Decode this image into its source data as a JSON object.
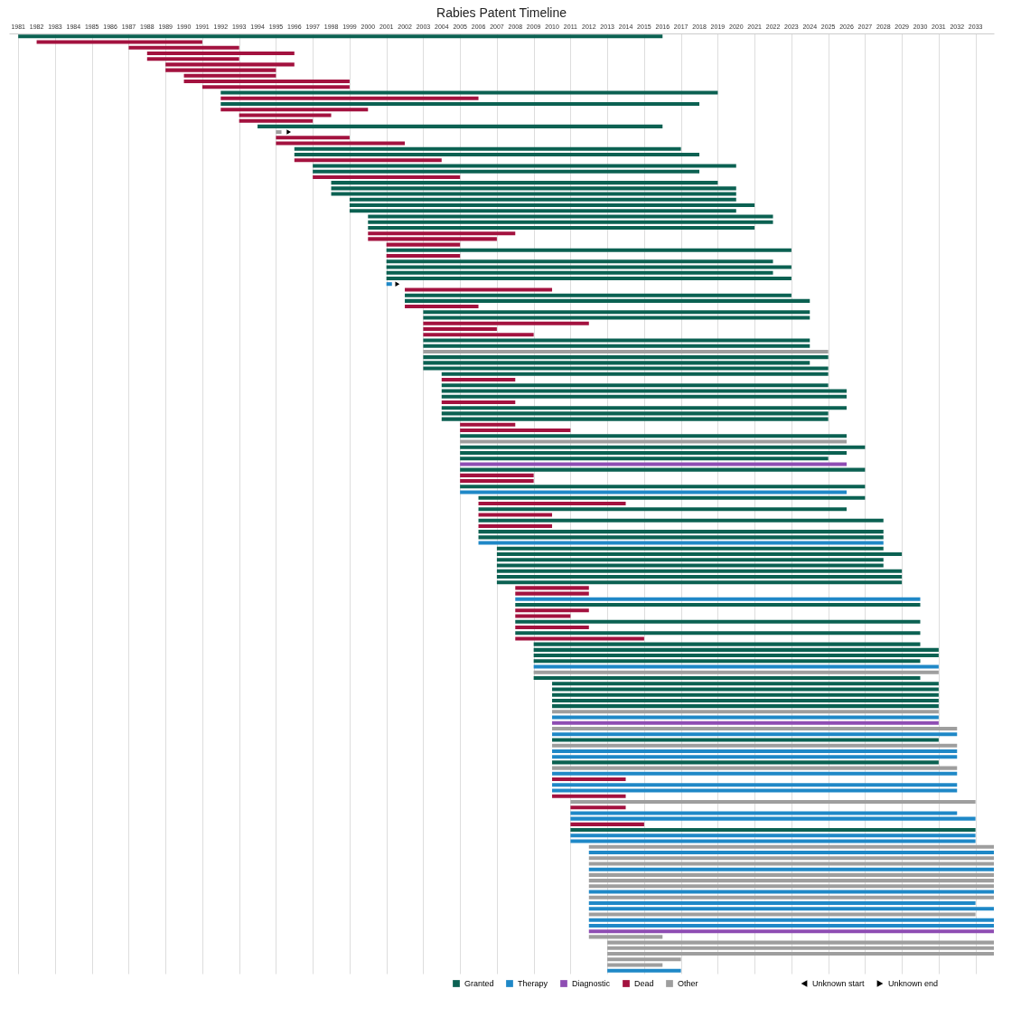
{
  "chart_data": {
    "type": "bar",
    "orientation": "horizontal",
    "title": "Rabies Patent Timeline",
    "categories": [
      null,
      null,
      null,
      null,
      null,
      null,
      null,
      null,
      null,
      null,
      null,
      null,
      null,
      null,
      null,
      null,
      null,
      null,
      null,
      null,
      null,
      null,
      null,
      null,
      null,
      null,
      null,
      null,
      null,
      null,
      null,
      null,
      null,
      null,
      null,
      null,
      null,
      null,
      null,
      null,
      null,
      null,
      null,
      null,
      null,
      null,
      null,
      null,
      null,
      null,
      null,
      null,
      null,
      null,
      null,
      null,
      null,
      null,
      null,
      null,
      null,
      null,
      null,
      null,
      null,
      null,
      null,
      null,
      null,
      null,
      null,
      null,
      null,
      null,
      null,
      null,
      null,
      null,
      null,
      null,
      null,
      null,
      null,
      null,
      null,
      null,
      null,
      null,
      null,
      null,
      null,
      null,
      null,
      null,
      null,
      null,
      null,
      null,
      null,
      null,
      null,
      null,
      null,
      null,
      null,
      null,
      null,
      null,
      null,
      null,
      null,
      null,
      null,
      null,
      null,
      null,
      null,
      null,
      null,
      null,
      null,
      null,
      null,
      null,
      null,
      null,
      null,
      null,
      null,
      null,
      null,
      null,
      null,
      null,
      null,
      null,
      null,
      null,
      null,
      null,
      null,
      null,
      null,
      null,
      null,
      null,
      null,
      null,
      null,
      null,
      null,
      null,
      null,
      null,
      null,
      null,
      null,
      null,
      null,
      null,
      null,
      null,
      null,
      null,
      null,
      null,
      null
    ],
    "series": [
      {
        "name": "Granted",
        "color": "#0b6152",
        "base": [
          1981,
          null,
          null,
          null,
          null,
          null,
          null,
          null,
          null,
          null,
          1992,
          null,
          1992,
          null,
          null,
          null,
          1994,
          null,
          null,
          null,
          1996,
          1996,
          null,
          1997,
          1997,
          null,
          1998,
          1998,
          1998,
          1999,
          1999,
          1999,
          2000,
          2000,
          2000,
          null,
          null,
          null,
          2001,
          null,
          2001,
          2001,
          2001,
          2001,
          null,
          null,
          2002,
          2002,
          null,
          2003,
          2003,
          null,
          null,
          null,
          2003,
          2003,
          null,
          2003,
          2003,
          2003,
          2004,
          null,
          2004,
          2004,
          2004,
          null,
          2004,
          2004,
          2004,
          null,
          null,
          2005,
          null,
          2005,
          2005,
          2005,
          null,
          2005,
          null,
          null,
          2005,
          null,
          2006,
          null,
          2006,
          null,
          2006,
          null,
          2006,
          2006,
          null,
          2007,
          2007,
          2007,
          2007,
          2007,
          2007,
          2007,
          null,
          null,
          null,
          2008,
          null,
          null,
          2008,
          null,
          2008,
          null,
          2009,
          2009,
          2009,
          2009,
          null,
          null,
          2009,
          2010,
          2010,
          2010,
          2010,
          2010,
          null,
          null,
          null,
          null,
          null,
          2010,
          null,
          null,
          null,
          2010,
          null,
          null,
          null,
          null,
          null,
          null,
          null,
          null,
          null,
          null,
          null,
          2011,
          null,
          null,
          null,
          null,
          null,
          null,
          null,
          null,
          null,
          null,
          null,
          null,
          null,
          null,
          null,
          null,
          null,
          null,
          null,
          null,
          null,
          null,
          null,
          null,
          null
        ],
        "values": [
          35,
          null,
          null,
          null,
          null,
          null,
          null,
          null,
          null,
          null,
          27,
          null,
          26,
          null,
          null,
          null,
          22,
          null,
          null,
          null,
          21,
          22,
          null,
          23,
          21,
          null,
          21,
          22,
          22,
          21,
          22,
          21,
          22,
          22,
          21,
          null,
          null,
          null,
          22,
          null,
          21,
          22,
          21,
          22,
          null,
          null,
          21,
          22,
          null,
          21,
          21,
          null,
          null,
          null,
          21,
          21,
          null,
          22,
          21,
          22,
          21,
          null,
          21,
          22,
          22,
          null,
          22,
          21,
          21,
          null,
          null,
          21,
          null,
          22,
          21,
          20,
          null,
          22,
          null,
          null,
          22,
          null,
          21,
          null,
          20,
          null,
          22,
          null,
          22,
          22,
          null,
          21,
          22,
          21,
          21,
          22,
          22,
          22,
          null,
          null,
          null,
          22,
          null,
          null,
          22,
          null,
          22,
          null,
          21,
          22,
          22,
          21,
          null,
          null,
          21,
          21,
          21,
          21,
          21,
          21,
          null,
          null,
          null,
          null,
          null,
          21,
          null,
          null,
          null,
          21,
          null,
          null,
          null,
          null,
          null,
          null,
          null,
          null,
          null,
          null,
          null,
          22,
          null,
          null,
          null,
          null,
          null,
          null,
          null,
          null,
          null,
          null,
          null,
          null,
          null,
          null,
          null,
          null,
          null,
          null,
          null,
          null,
          null,
          null,
          null,
          null,
          null
        ]
      },
      {
        "name": "Therapy",
        "color": "#1f88c7",
        "base": [
          null,
          null,
          null,
          null,
          null,
          null,
          null,
          null,
          null,
          null,
          null,
          null,
          null,
          null,
          null,
          null,
          null,
          null,
          null,
          null,
          null,
          null,
          null,
          null,
          null,
          null,
          null,
          null,
          null,
          null,
          null,
          null,
          null,
          null,
          null,
          null,
          null,
          null,
          null,
          null,
          null,
          null,
          null,
          null,
          2001,
          null,
          null,
          null,
          null,
          null,
          null,
          null,
          null,
          null,
          null,
          null,
          null,
          null,
          null,
          null,
          null,
          null,
          null,
          null,
          null,
          null,
          null,
          null,
          null,
          null,
          null,
          null,
          null,
          null,
          null,
          null,
          null,
          null,
          null,
          null,
          null,
          2005,
          null,
          null,
          null,
          null,
          null,
          null,
          null,
          null,
          2006,
          null,
          null,
          null,
          null,
          null,
          null,
          null,
          null,
          null,
          2008,
          null,
          null,
          null,
          null,
          null,
          null,
          null,
          null,
          null,
          null,
          null,
          2009,
          null,
          null,
          null,
          null,
          null,
          null,
          null,
          null,
          2010,
          null,
          null,
          2010,
          null,
          null,
          2010,
          2010,
          null,
          null,
          2010,
          null,
          2010,
          2010,
          null,
          null,
          null,
          2011,
          2011,
          null,
          null,
          2011,
          2011,
          null,
          2012,
          null,
          null,
          2012,
          null,
          null,
          null,
          2012,
          null,
          2012,
          2012,
          null,
          2012,
          2012,
          null,
          null,
          null,
          null,
          null,
          null,
          null,
          2013
        ],
        "values": [
          null,
          null,
          null,
          null,
          null,
          null,
          null,
          null,
          null,
          null,
          null,
          null,
          null,
          null,
          null,
          null,
          null,
          null,
          null,
          null,
          null,
          null,
          null,
          null,
          null,
          null,
          null,
          null,
          null,
          null,
          null,
          null,
          null,
          null,
          null,
          null,
          null,
          null,
          null,
          null,
          null,
          null,
          null,
          null,
          0.3,
          null,
          null,
          null,
          null,
          null,
          null,
          null,
          null,
          null,
          null,
          null,
          null,
          null,
          null,
          null,
          null,
          null,
          null,
          null,
          null,
          null,
          null,
          null,
          null,
          null,
          null,
          null,
          null,
          null,
          null,
          null,
          null,
          null,
          null,
          null,
          null,
          21,
          null,
          null,
          null,
          null,
          null,
          null,
          null,
          null,
          22,
          null,
          null,
          null,
          null,
          null,
          null,
          null,
          null,
          null,
          22,
          null,
          null,
          null,
          null,
          null,
          null,
          null,
          null,
          null,
          null,
          null,
          22,
          null,
          null,
          null,
          null,
          null,
          null,
          null,
          null,
          21,
          null,
          null,
          22,
          null,
          null,
          22,
          22,
          null,
          null,
          22,
          null,
          22,
          22,
          null,
          null,
          null,
          21,
          22,
          null,
          null,
          22,
          22,
          null,
          22,
          null,
          null,
          22,
          null,
          null,
          null,
          22,
          null,
          21,
          22,
          null,
          22,
          22,
          null,
          null,
          null,
          null,
          null,
          null,
          null,
          4
        ]
      },
      {
        "name": "Diagnostic",
        "color": "#8e4db3",
        "base": [
          null,
          null,
          null,
          null,
          null,
          null,
          null,
          null,
          null,
          null,
          null,
          null,
          null,
          null,
          null,
          null,
          null,
          null,
          null,
          null,
          null,
          null,
          null,
          null,
          null,
          null,
          null,
          null,
          null,
          null,
          null,
          null,
          null,
          null,
          null,
          null,
          null,
          null,
          null,
          null,
          null,
          null,
          null,
          null,
          null,
          null,
          null,
          null,
          null,
          null,
          null,
          null,
          null,
          null,
          null,
          null,
          null,
          null,
          null,
          null,
          null,
          null,
          null,
          null,
          null,
          null,
          null,
          null,
          null,
          null,
          null,
          null,
          null,
          null,
          null,
          null,
          2005,
          null,
          null,
          null,
          null,
          null,
          null,
          null,
          null,
          null,
          null,
          null,
          null,
          null,
          null,
          null,
          null,
          null,
          null,
          null,
          null,
          null,
          null,
          null,
          null,
          null,
          null,
          null,
          null,
          null,
          null,
          null,
          null,
          null,
          null,
          null,
          null,
          null,
          null,
          null,
          null,
          null,
          null,
          null,
          null,
          null,
          2010,
          null,
          null,
          null,
          null,
          null,
          null,
          null,
          null,
          null,
          null,
          null,
          null,
          null,
          null,
          null,
          null,
          null,
          null,
          null,
          null,
          null,
          null,
          null,
          null,
          null,
          null,
          null,
          null,
          null,
          null,
          null,
          null,
          null,
          null,
          null,
          null,
          2012,
          null,
          null,
          null,
          null,
          null,
          null,
          null
        ],
        "values": [
          null,
          null,
          null,
          null,
          null,
          null,
          null,
          null,
          null,
          null,
          null,
          null,
          null,
          null,
          null,
          null,
          null,
          null,
          null,
          null,
          null,
          null,
          null,
          null,
          null,
          null,
          null,
          null,
          null,
          null,
          null,
          null,
          null,
          null,
          null,
          null,
          null,
          null,
          null,
          null,
          null,
          null,
          null,
          null,
          null,
          null,
          null,
          null,
          null,
          null,
          null,
          null,
          null,
          null,
          null,
          null,
          null,
          null,
          null,
          null,
          null,
          null,
          null,
          null,
          null,
          null,
          null,
          null,
          null,
          null,
          null,
          null,
          null,
          null,
          null,
          null,
          21,
          null,
          null,
          null,
          null,
          null,
          null,
          null,
          null,
          null,
          null,
          null,
          null,
          null,
          null,
          null,
          null,
          null,
          null,
          null,
          null,
          null,
          null,
          null,
          null,
          null,
          null,
          null,
          null,
          null,
          null,
          null,
          null,
          null,
          null,
          null,
          null,
          null,
          null,
          null,
          null,
          null,
          null,
          null,
          null,
          null,
          21,
          null,
          null,
          null,
          null,
          null,
          null,
          null,
          null,
          null,
          null,
          null,
          null,
          null,
          null,
          null,
          null,
          null,
          null,
          null,
          null,
          null,
          null,
          null,
          null,
          null,
          null,
          null,
          null,
          null,
          null,
          null,
          null,
          null,
          null,
          null,
          null,
          22,
          null,
          null,
          null,
          null,
          null,
          null,
          null
        ]
      },
      {
        "name": "Dead",
        "color": "#a3123f",
        "base": [
          null,
          1982,
          1987,
          1988,
          1988,
          1989,
          1989,
          1990,
          1990,
          1991,
          null,
          1992,
          null,
          1992,
          1993,
          1993,
          null,
          null,
          1995,
          1995,
          null,
          null,
          1996,
          null,
          null,
          1997,
          null,
          null,
          null,
          null,
          null,
          null,
          null,
          null,
          null,
          2000,
          2000,
          2001,
          null,
          2001,
          null,
          null,
          null,
          null,
          null,
          2002,
          null,
          null,
          2002,
          null,
          null,
          2003,
          2003,
          2003,
          null,
          null,
          null,
          null,
          null,
          null,
          null,
          2004,
          null,
          null,
          null,
          2004,
          null,
          null,
          null,
          2005,
          2005,
          null,
          null,
          null,
          null,
          null,
          null,
          null,
          2005,
          2005,
          null,
          null,
          null,
          2006,
          null,
          2006,
          null,
          2006,
          null,
          null,
          null,
          null,
          null,
          null,
          null,
          null,
          null,
          null,
          2008,
          2008,
          null,
          null,
          2008,
          2008,
          null,
          2008,
          null,
          2008,
          null,
          null,
          null,
          null,
          null,
          null,
          null,
          null,
          null,
          null,
          null,
          null,
          null,
          null,
          null,
          null,
          null,
          null,
          null,
          null,
          null,
          null,
          null,
          null,
          2010,
          null,
          null,
          2010,
          null,
          2011,
          null,
          null,
          2011,
          null,
          null,
          null,
          null,
          null,
          null,
          null,
          null,
          null,
          null,
          null,
          null,
          null,
          null,
          null,
          null,
          null,
          null,
          null,
          null,
          null,
          null,
          null,
          null,
          null,
          null
        ],
        "values": [
          null,
          9,
          6,
          8,
          5,
          7,
          6,
          5,
          9,
          8,
          null,
          14,
          null,
          8,
          5,
          4,
          null,
          null,
          4,
          7,
          null,
          null,
          8,
          null,
          null,
          8,
          null,
          null,
          null,
          null,
          null,
          null,
          null,
          null,
          null,
          8,
          7,
          4,
          null,
          4,
          null,
          null,
          null,
          null,
          null,
          8,
          null,
          null,
          4,
          null,
          null,
          9,
          4,
          6,
          null,
          null,
          null,
          null,
          null,
          null,
          null,
          4,
          null,
          null,
          null,
          4,
          null,
          null,
          null,
          3,
          6,
          null,
          null,
          null,
          null,
          null,
          null,
          null,
          4,
          4,
          null,
          null,
          null,
          8,
          null,
          4,
          null,
          4,
          null,
          null,
          null,
          null,
          null,
          null,
          null,
          null,
          null,
          null,
          4,
          4,
          null,
          null,
          4,
          3,
          null,
          4,
          null,
          7,
          null,
          null,
          null,
          null,
          null,
          null,
          null,
          null,
          null,
          null,
          null,
          null,
          null,
          null,
          null,
          null,
          null,
          null,
          null,
          null,
          null,
          null,
          null,
          null,
          4,
          null,
          null,
          4,
          null,
          3,
          null,
          null,
          4,
          null,
          null,
          null,
          null,
          null,
          null,
          null,
          null,
          null,
          null,
          null,
          null,
          null,
          null,
          null,
          null,
          null,
          null,
          null,
          null,
          null,
          null,
          null,
          null,
          null,
          null
        ]
      },
      {
        "name": "Other",
        "color": "#9e9e9e",
        "base": [
          null,
          null,
          null,
          null,
          null,
          null,
          null,
          null,
          null,
          null,
          null,
          null,
          null,
          null,
          null,
          null,
          null,
          1995,
          null,
          null,
          null,
          null,
          null,
          null,
          null,
          null,
          null,
          null,
          null,
          null,
          null,
          null,
          null,
          null,
          null,
          null,
          null,
          null,
          null,
          null,
          null,
          null,
          null,
          null,
          null,
          null,
          null,
          null,
          null,
          null,
          null,
          null,
          null,
          null,
          null,
          null,
          2003,
          null,
          null,
          null,
          null,
          null,
          null,
          null,
          null,
          null,
          null,
          null,
          null,
          null,
          null,
          null,
          2005,
          null,
          null,
          null,
          null,
          null,
          null,
          null,
          null,
          null,
          null,
          null,
          null,
          null,
          null,
          null,
          null,
          null,
          null,
          null,
          null,
          null,
          null,
          null,
          null,
          null,
          null,
          null,
          null,
          null,
          null,
          null,
          null,
          null,
          null,
          null,
          null,
          null,
          null,
          null,
          null,
          2009,
          null,
          null,
          null,
          null,
          null,
          null,
          2010,
          null,
          null,
          2010,
          null,
          null,
          2010,
          null,
          null,
          null,
          2010,
          null,
          null,
          null,
          null,
          null,
          2011,
          null,
          null,
          null,
          null,
          null,
          null,
          null,
          2012,
          null,
          2012,
          2012,
          null,
          2012,
          2012,
          2012,
          null,
          2012,
          null,
          null,
          2012,
          null,
          null,
          null,
          2012,
          2013,
          2013,
          2013,
          2013,
          2013,
          null
        ],
        "values": [
          null,
          null,
          null,
          null,
          null,
          null,
          null,
          null,
          null,
          null,
          null,
          null,
          null,
          null,
          null,
          null,
          null,
          0.3,
          null,
          null,
          null,
          null,
          null,
          null,
          null,
          null,
          null,
          null,
          null,
          null,
          null,
          null,
          null,
          null,
          null,
          null,
          null,
          null,
          null,
          null,
          null,
          null,
          null,
          null,
          null,
          null,
          null,
          null,
          null,
          null,
          null,
          null,
          null,
          null,
          null,
          null,
          22,
          null,
          null,
          null,
          null,
          null,
          null,
          null,
          null,
          null,
          null,
          null,
          null,
          null,
          null,
          null,
          21,
          null,
          null,
          null,
          null,
          null,
          null,
          null,
          null,
          null,
          null,
          null,
          null,
          null,
          null,
          null,
          null,
          null,
          null,
          null,
          null,
          null,
          null,
          null,
          null,
          null,
          null,
          null,
          null,
          null,
          null,
          null,
          null,
          null,
          null,
          null,
          null,
          null,
          null,
          null,
          null,
          22,
          null,
          null,
          null,
          null,
          null,
          null,
          21,
          null,
          null,
          22,
          null,
          null,
          22,
          null,
          null,
          null,
          22,
          null,
          null,
          null,
          null,
          null,
          22,
          null,
          null,
          null,
          null,
          null,
          null,
          null,
          22,
          null,
          22,
          22,
          null,
          22,
          22,
          22,
          null,
          22,
          null,
          null,
          21,
          null,
          null,
          null,
          4,
          21,
          21,
          21,
          4,
          3,
          null
        ]
      },
      {
        "name": "Unknown start",
        "color": "#000000",
        "type": "scatter",
        "marker": "triangle",
        "values": [
          null,
          null,
          null,
          null,
          null,
          null,
          null,
          null,
          null,
          null,
          null,
          null,
          null,
          null,
          null,
          null,
          null,
          null,
          null,
          null,
          null,
          null,
          null,
          null,
          null,
          null,
          null,
          null,
          null,
          null,
          null,
          null,
          null,
          null,
          null,
          null,
          null,
          null,
          null,
          null,
          null,
          null,
          null,
          null,
          null,
          null,
          null,
          null,
          null,
          null,
          null,
          null,
          null,
          null,
          null,
          null,
          null,
          null,
          null,
          null,
          null,
          null,
          null,
          null,
          null,
          null,
          null,
          null,
          null,
          null,
          null,
          null,
          null,
          null,
          null,
          null,
          null,
          null,
          null,
          null,
          null,
          null,
          null,
          null,
          null,
          null,
          null,
          null,
          null,
          null,
          null,
          null,
          null,
          null,
          null,
          null,
          null,
          null,
          null,
          null,
          null,
          null,
          null,
          null,
          null,
          null,
          null,
          null,
          null,
          null,
          null,
          null,
          null,
          null,
          null,
          null,
          null,
          null,
          null,
          null,
          null,
          null,
          null,
          null,
          null,
          null,
          null,
          null,
          null,
          null,
          null,
          null,
          null,
          null,
          null,
          null,
          null,
          null,
          null,
          null,
          null,
          null,
          null,
          null,
          null,
          null,
          null,
          null,
          null,
          null,
          null,
          null,
          null,
          null,
          null,
          null,
          null,
          null,
          null,
          null,
          null,
          null,
          null,
          null,
          null,
          null,
          null
        ]
      },
      {
        "name": "Unknown end",
        "color": "#000000",
        "type": "scatter",
        "marker": "triangle",
        "values": [
          null,
          null,
          null,
          null,
          null,
          null,
          null,
          null,
          null,
          null,
          null,
          null,
          null,
          null,
          null,
          null,
          null,
          1995.7,
          null,
          null,
          null,
          null,
          null,
          null,
          null,
          null,
          null,
          null,
          null,
          null,
          null,
          null,
          null,
          null,
          null,
          null,
          null,
          null,
          null,
          null,
          null,
          null,
          null,
          null,
          2001.6,
          null,
          null,
          null,
          null,
          null,
          null,
          null,
          null,
          null,
          null,
          null,
          null,
          null,
          null,
          null,
          null,
          null,
          null,
          null,
          null,
          null,
          null,
          null,
          null,
          null,
          null,
          null,
          null,
          null,
          null,
          null,
          null,
          null,
          null,
          null,
          null,
          null,
          null,
          null,
          null,
          null,
          null,
          null,
          null,
          null,
          null,
          null,
          null,
          null,
          null,
          null,
          null,
          null,
          null,
          null,
          null,
          null,
          null,
          null,
          null,
          null,
          null,
          null,
          null,
          null,
          null,
          null,
          null,
          null,
          null,
          null,
          null,
          null,
          null,
          null,
          null,
          null,
          null,
          null,
          null,
          null,
          null,
          null,
          null,
          null,
          null,
          null,
          null,
          null,
          null,
          null,
          null,
          null,
          null,
          null,
          null,
          null,
          null,
          null,
          null,
          null,
          null,
          null,
          null,
          null,
          null,
          null,
          null,
          null,
          null,
          null,
          null,
          null,
          null,
          null,
          null,
          null,
          null,
          null,
          null,
          null,
          null
        ]
      }
    ],
    "xlim": [
      1980.5,
      2034
    ],
    "xticks": [
      1981,
      1982,
      1983,
      1984,
      1985,
      1986,
      1987,
      1988,
      1989,
      1990,
      1991,
      1992,
      1993,
      1994,
      1995,
      1996,
      1997,
      1998,
      1999,
      2000,
      2001,
      2002,
      2003,
      2004,
      2005,
      2006,
      2007,
      2008,
      2009,
      2010,
      2011,
      2012,
      2013,
      2014,
      2015,
      2016,
      2017,
      2018,
      2019,
      2020,
      2021,
      2022,
      2023,
      2024,
      2025,
      2026,
      2027,
      2028,
      2029,
      2030,
      2031,
      2032,
      2033
    ],
    "grid": "x",
    "legend": "bottom right"
  }
}
